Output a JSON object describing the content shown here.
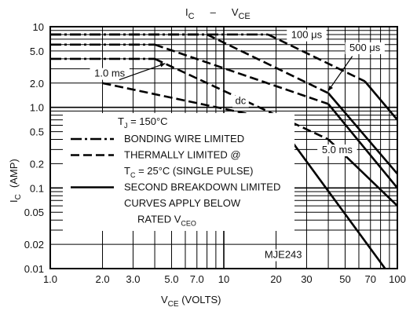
{
  "chart_data": {
    "type": "line",
    "title": {
      "main": "I",
      "main_sub": "C",
      "dash": "–",
      "second": "V",
      "second_sub": "CE"
    },
    "xlabel": {
      "main": "V",
      "sub": "CE",
      "rest": "(VOLTS)"
    },
    "ylabel": {
      "main": "I",
      "sub": "C",
      "rest": "(AMP)"
    },
    "x_scale": "log",
    "y_scale": "log",
    "xlim": [
      1,
      100
    ],
    "ylim": [
      0.01,
      10
    ],
    "grid": true,
    "x_ticks": [
      {
        "value": 1,
        "label": "1.0"
      },
      {
        "value": 2,
        "label": "2.0"
      },
      {
        "value": 3,
        "label": "3.0"
      },
      {
        "value": 5,
        "label": "5.0"
      },
      {
        "value": 7,
        "label": "7.0"
      },
      {
        "value": 10,
        "label": "10"
      },
      {
        "value": 20,
        "label": "20"
      },
      {
        "value": 30,
        "label": "30"
      },
      {
        "value": 50,
        "label": "50"
      },
      {
        "value": 70,
        "label": "70"
      },
      {
        "value": 100,
        "label": "100"
      }
    ],
    "y_ticks": [
      {
        "value": 10,
        "label": "10"
      },
      {
        "value": 5,
        "label": "5.0"
      },
      {
        "value": 2,
        "label": "2.0"
      },
      {
        "value": 1,
        "label": "1.0"
      },
      {
        "value": 0.5,
        "label": "0.5"
      },
      {
        "value": 0.2,
        "label": "0.2"
      },
      {
        "value": 0.1,
        "label": "0.1"
      },
      {
        "value": 0.05,
        "label": "0.05"
      },
      {
        "value": 0.02,
        "label": "0.02"
      },
      {
        "value": 0.01,
        "label": "0.01"
      }
    ],
    "series": [
      {
        "style": "dashdot",
        "x": [
          1,
          4
        ],
        "y": [
          4,
          4
        ]
      },
      {
        "style": "dash",
        "x": [
          4,
          40
        ],
        "y": [
          4,
          0.4
        ]
      },
      {
        "style": "solid",
        "x": [
          40,
          100
        ],
        "y": [
          0.4,
          0.06
        ]
      },
      {
        "style": "dashdot",
        "x": [
          1,
          4
        ],
        "y": [
          6,
          6
        ]
      },
      {
        "style": "dash",
        "x": [
          4,
          40
        ],
        "y": [
          6,
          1.1
        ]
      },
      {
        "style": "solid",
        "x": [
          40,
          100
        ],
        "y": [
          1.1,
          0.1
        ]
      },
      {
        "style": "dashdot",
        "x": [
          1,
          8
        ],
        "y": [
          8,
          8
        ]
      },
      {
        "style": "dash",
        "x": [
          8,
          40
        ],
        "y": [
          8,
          1.5
        ]
      },
      {
        "style": "solid",
        "x": [
          40,
          100
        ],
        "y": [
          1.5,
          0.15
        ]
      },
      {
        "style": "dashdot",
        "x": [
          1,
          18
        ],
        "y": [
          8,
          8
        ]
      },
      {
        "style": "dash",
        "x": [
          18,
          65
        ],
        "y": [
          8,
          2.1
        ]
      },
      {
        "style": "solid",
        "x": [
          65,
          100
        ],
        "y": [
          2.1,
          0.7
        ]
      },
      {
        "style": "dash",
        "x": [
          2,
          20
        ],
        "y": [
          2,
          0.7
        ]
      },
      {
        "style": "solid",
        "x": [
          20,
          85
        ],
        "y": [
          0.7,
          0.01
        ]
      }
    ],
    "annotations": [
      {
        "text": "100 μs",
        "x": 30,
        "y": 7.2
      },
      {
        "text": "500 μs",
        "x": 65,
        "y": 5.0
      },
      {
        "text": "1.0 ms",
        "x": 2.2,
        "y": 2.4
      },
      {
        "text": "dc",
        "x": 12.5,
        "y": 1.1
      },
      {
        "text": "5.0 ms",
        "x": 45,
        "y": 0.27
      },
      {
        "text": "MJE243",
        "x": 22,
        "y": 0.0135
      }
    ],
    "legend": {
      "placement": "bottom-left",
      "tj": {
        "main": "T",
        "sub": "J",
        "rest": " = 150°C"
      },
      "items": [
        {
          "style": "dashdot",
          "text": "BONDING WIRE LIMITED"
        },
        {
          "style": "dash",
          "text": "THERMALLY LIMITED @"
        },
        {
          "style": "none",
          "text": "",
          "rich": {
            "main": "T",
            "sub": "C",
            "rest": " = 25°C (SINGLE PULSE)"
          }
        },
        {
          "style": "solid",
          "text": "SECOND BREAKDOWN LIMITED"
        },
        {
          "style": "none",
          "text": "CURVES APPLY BELOW"
        },
        {
          "style": "none",
          "text": "",
          "rich": {
            "main": "RATED V",
            "sub": "CEO",
            "rest": ""
          }
        }
      ]
    }
  }
}
